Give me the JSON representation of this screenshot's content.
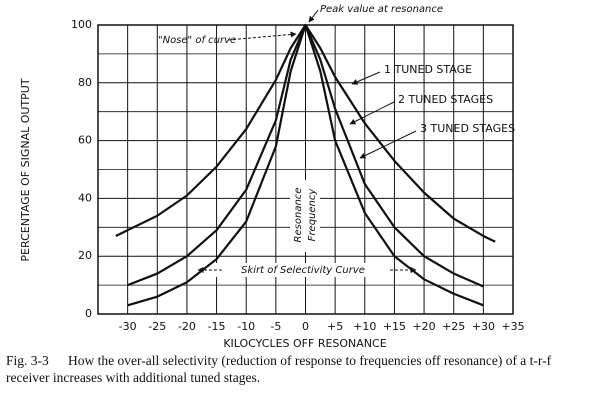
{
  "chart_data": {
    "type": "line",
    "y_label": "PERCENTAGE OF SIGNAL OUTPUT",
    "x_label": "KILOCYCLES OFF RESONANCE",
    "x": [
      -32,
      -30,
      -25,
      -20,
      -15,
      -10,
      -5,
      -2.5,
      0,
      2.5,
      5,
      10,
      15,
      20,
      25,
      30,
      32
    ],
    "series": [
      {
        "name": "1 TUNED STAGE",
        "color": "#111111",
        "values": [
          27,
          29,
          34,
          41,
          51,
          64,
          81,
          92,
          100,
          92,
          82,
          66,
          53,
          42,
          33,
          27,
          25
        ]
      },
      {
        "name": "2 TUNED STAGES",
        "color": "#111111",
        "values": [
          null,
          10,
          14,
          20,
          29,
          43,
          67,
          88,
          100,
          88,
          71,
          45,
          30,
          20,
          14,
          9.5,
          null
        ]
      },
      {
        "name": "3 TUNED STAGES",
        "color": "#111111",
        "values": [
          null,
          3,
          6,
          11,
          19,
          32,
          58,
          84,
          100,
          84,
          60,
          35,
          20,
          12,
          7,
          3,
          null
        ]
      }
    ],
    "annotations": [
      "Peak value at resonance",
      "\"Nose\" of curve",
      "Skirt of Selectivity Curve",
      "Resonance",
      "Frequency"
    ],
    "xlim": [
      -35,
      35
    ],
    "xticks": [
      -30,
      -25,
      -20,
      -15,
      -10,
      -5,
      0,
      {
        "value": 5,
        "label": "+5"
      },
      {
        "value": 10,
        "label": "+10"
      },
      {
        "value": 15,
        "label": "+15"
      },
      {
        "value": 20,
        "label": "+20"
      },
      {
        "value": 25,
        "label": "+25"
      },
      {
        "value": 30,
        "label": "+30"
      },
      {
        "value": 35,
        "label": "+35"
      }
    ],
    "ylim": [
      0,
      100
    ],
    "yticks": [
      0,
      20,
      40,
      60,
      80,
      100
    ],
    "grid": true
  },
  "caption_label": "Fig. 3-3",
  "caption": "How the over-all selectivity (reduction of response to frequencies off resonance) of a t-r-f receiver increases with additional tuned stages."
}
